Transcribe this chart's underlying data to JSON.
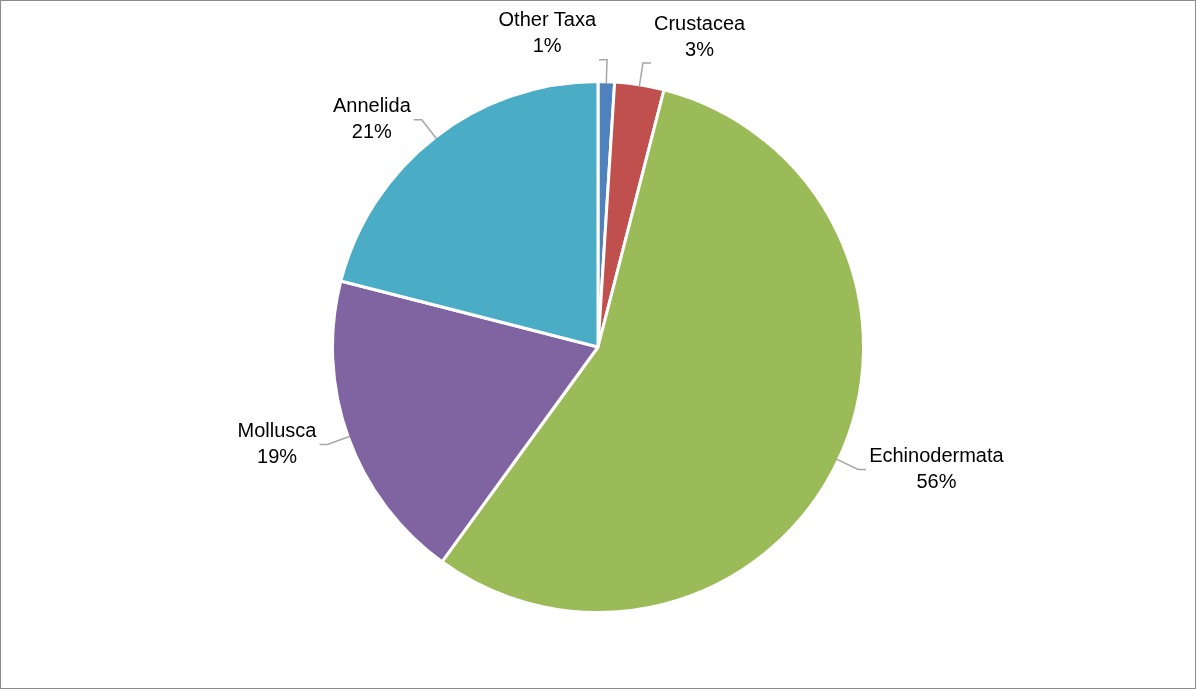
{
  "chart_data": {
    "type": "pie",
    "categories": [
      "Other Taxa",
      "Crustacea",
      "Echinodermata",
      "Mollusca",
      "Annelida"
    ],
    "values": [
      1,
      3,
      56,
      19,
      21
    ],
    "colors": [
      "#4f81bd",
      "#c0504d",
      "#9bbb59",
      "#8064a2",
      "#4bacc6"
    ],
    "value_labels": [
      "1%",
      "3%",
      "56%",
      "19%",
      "21%"
    ],
    "legend": false
  }
}
